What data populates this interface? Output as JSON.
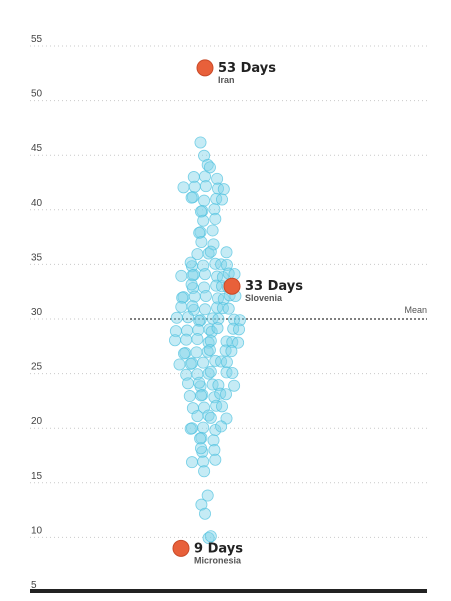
{
  "chart_data": {
    "type": "scatter",
    "title": "",
    "xlabel": "",
    "ylabel": "",
    "ylim": [
      5,
      55
    ],
    "yticks": [
      5,
      10,
      15,
      20,
      25,
      30,
      35,
      40,
      45,
      50,
      55
    ],
    "grid": "horizontal dotted",
    "mean": {
      "label": "Mean",
      "value": 30
    },
    "point_color": "#7fd3e8",
    "highlight_color": "#e8603a",
    "values": [
      46,
      45,
      44,
      44,
      43,
      43,
      43,
      42,
      42,
      42,
      42,
      42,
      41,
      41,
      41,
      41,
      41,
      40,
      40,
      40,
      39,
      39,
      38,
      38,
      38,
      37,
      37,
      36,
      36,
      36,
      36,
      35,
      35,
      35,
      35,
      35,
      35,
      34,
      34,
      34,
      34,
      34,
      34,
      34,
      34,
      33,
      33,
      33,
      33,
      33,
      33,
      32,
      32,
      32,
      32,
      32,
      32,
      32,
      32,
      31,
      31,
      31,
      31,
      31,
      31,
      31,
      30,
      30,
      30,
      30,
      30,
      30,
      30,
      30,
      29,
      29,
      29,
      29,
      29,
      29,
      29,
      29,
      28,
      28,
      28,
      28,
      28,
      28,
      28,
      28,
      27,
      27,
      27,
      27,
      27,
      27,
      27,
      26,
      26,
      26,
      26,
      26,
      26,
      26,
      25,
      25,
      25,
      25,
      25,
      25,
      24,
      24,
      24,
      24,
      24,
      24,
      23,
      23,
      23,
      23,
      23,
      23,
      22,
      22,
      22,
      22,
      21,
      21,
      21,
      21,
      20,
      20,
      20,
      20,
      20,
      19,
      19,
      19,
      18,
      18,
      18,
      17,
      17,
      17,
      16,
      14,
      13,
      12,
      10,
      10
    ],
    "highlights": [
      {
        "value": 53,
        "label": "53 Days",
        "country": "Iran"
      },
      {
        "value": 33,
        "label": "33 Days",
        "country": "Slovenia"
      },
      {
        "value": 9,
        "label": "9 Days",
        "country": "Micronesia"
      }
    ]
  }
}
